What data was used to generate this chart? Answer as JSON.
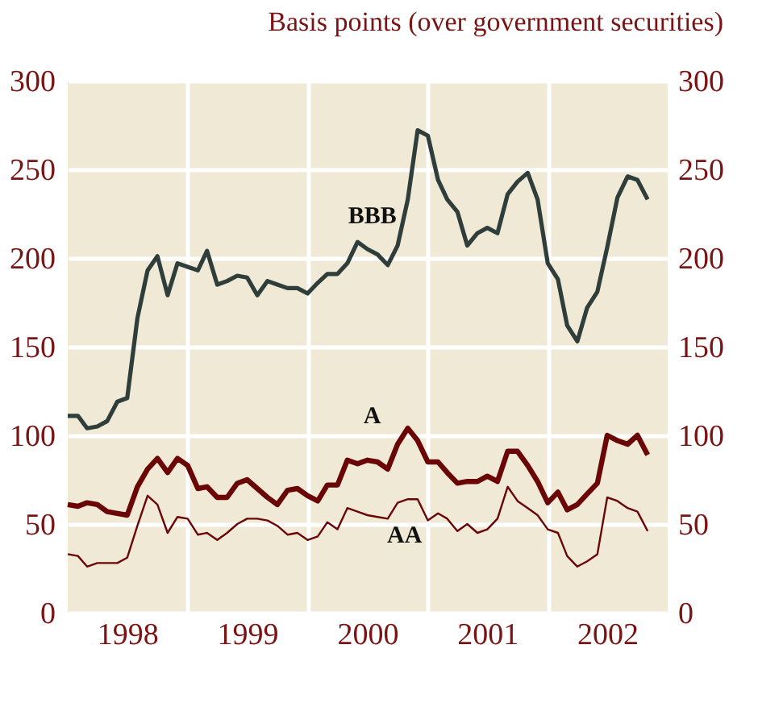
{
  "chart_data": {
    "type": "line",
    "title": "Basis points (over government securities)",
    "x": [
      "1998-01",
      "1998-02",
      "1998-03",
      "1998-04",
      "1998-05",
      "1998-06",
      "1998-07",
      "1998-08",
      "1998-09",
      "1998-10",
      "1998-11",
      "1998-12",
      "1999-01",
      "1999-02",
      "1999-03",
      "1999-04",
      "1999-05",
      "1999-06",
      "1999-07",
      "1999-08",
      "1999-09",
      "1999-10",
      "1999-11",
      "1999-12",
      "2000-01",
      "2000-02",
      "2000-03",
      "2000-04",
      "2000-05",
      "2000-06",
      "2000-07",
      "2000-08",
      "2000-09",
      "2000-10",
      "2000-11",
      "2000-12",
      "2001-01",
      "2001-02",
      "2001-03",
      "2001-04",
      "2001-05",
      "2001-06",
      "2001-07",
      "2001-08",
      "2001-09",
      "2001-10",
      "2001-11",
      "2001-12",
      "2002-01",
      "2002-02",
      "2002-03",
      "2002-04",
      "2002-05",
      "2002-06",
      "2002-07",
      "2002-08",
      "2002-09",
      "2002-10",
      "2002-11"
    ],
    "series": [
      {
        "name": "BBB",
        "color": "#2f3e3a",
        "values": [
          111,
          111,
          104,
          105,
          108,
          119,
          121,
          166,
          193,
          201,
          179,
          197,
          195,
          193,
          204,
          185,
          187,
          190,
          189,
          179,
          187,
          185,
          183,
          183,
          180,
          186,
          191,
          191,
          197,
          209,
          205,
          202,
          196,
          207,
          233,
          272,
          269,
          244,
          233,
          226,
          207,
          214,
          217,
          214,
          236,
          243,
          248,
          233,
          197,
          188,
          162,
          153,
          172,
          181,
          206,
          234,
          246,
          244,
          233
        ]
      },
      {
        "name": "A",
        "color": "#6b0606",
        "values": [
          61,
          60,
          62,
          61,
          57,
          56,
          55,
          71,
          81,
          87,
          79,
          87,
          83,
          70,
          71,
          65,
          65,
          73,
          75,
          70,
          65,
          61,
          69,
          70,
          66,
          63,
          72,
          72,
          86,
          84,
          86,
          85,
          81,
          95,
          104,
          97,
          85,
          85,
          79,
          73,
          74,
          74,
          77,
          74,
          91,
          91,
          83,
          74,
          62,
          68,
          58,
          61,
          67,
          73,
          100,
          97,
          95,
          100,
          89
        ]
      },
      {
        "name": "AA",
        "color": "#6b0606",
        "values": [
          33,
          32,
          26,
          28,
          28,
          28,
          31,
          49,
          66,
          61,
          45,
          54,
          53,
          44,
          45,
          41,
          45,
          50,
          53,
          53,
          52,
          49,
          44,
          45,
          41,
          43,
          51,
          47,
          59,
          57,
          55,
          54,
          53,
          62,
          64,
          64,
          52,
          56,
          53,
          46,
          50,
          45,
          47,
          53,
          71,
          63,
          59,
          55,
          47,
          45,
          32,
          26,
          29,
          33,
          65,
          63,
          59,
          57,
          46
        ]
      }
    ],
    "xlim": [
      "1998-01-01",
      "2003-01-01"
    ],
    "xticks": [
      {
        "value": "1998-07-01",
        "label": "1998"
      },
      {
        "value": "1999-07-01",
        "label": "1999"
      },
      {
        "value": "2000-07-01",
        "label": "2000"
      },
      {
        "value": "2001-07-01",
        "label": "2001"
      },
      {
        "value": "2002-07-01",
        "label": "2002"
      },
      {
        "value": "1999-01-01",
        "label": null
      },
      {
        "value": "2000-01-01",
        "label": null
      },
      {
        "value": "2001-01-01",
        "label": null
      },
      {
        "value": "2002-01-01",
        "label": null
      }
    ],
    "ylim": [
      0,
      300
    ],
    "yticks": [
      0,
      50,
      100,
      150,
      200,
      250,
      300
    ],
    "y2lim": [
      0,
      300
    ],
    "y2ticks": [
      0,
      50,
      100,
      150,
      200,
      250,
      300
    ],
    "grid": true,
    "line_style": "solid",
    "marker": "none"
  }
}
